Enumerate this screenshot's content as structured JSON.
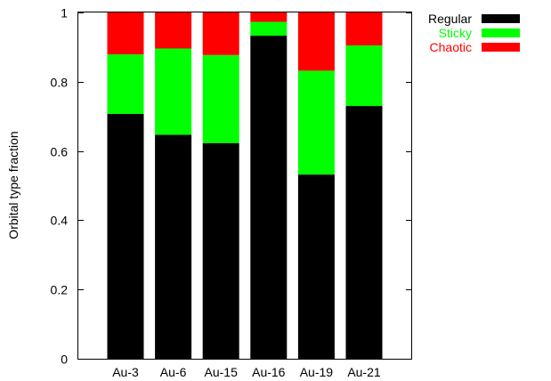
{
  "chart_data": {
    "type": "bar",
    "stacked": true,
    "categories": [
      "Au-3",
      "Au-6",
      "Au-15",
      "Au-16",
      "Au-19",
      "Au-21"
    ],
    "series": [
      {
        "name": "Regular",
        "color": "#000000",
        "values": [
          0.707,
          0.647,
          0.623,
          0.933,
          0.532,
          0.73
        ]
      },
      {
        "name": "Sticky",
        "color": "#00ff00",
        "values": [
          0.172,
          0.249,
          0.254,
          0.04,
          0.3,
          0.175
        ]
      },
      {
        "name": "Chaotic",
        "color": "#ff0000",
        "values": [
          0.121,
          0.104,
          0.123,
          0.027,
          0.168,
          0.095
        ]
      }
    ],
    "title": "",
    "xlabel": "",
    "ylabel": "Orbital type fraction",
    "ylim": [
      0,
      1
    ],
    "yticks": [
      "0",
      "0.2",
      "0.4",
      "0.6",
      "0.8",
      "1"
    ],
    "grid": false,
    "legend_position": "outside-top-right"
  }
}
